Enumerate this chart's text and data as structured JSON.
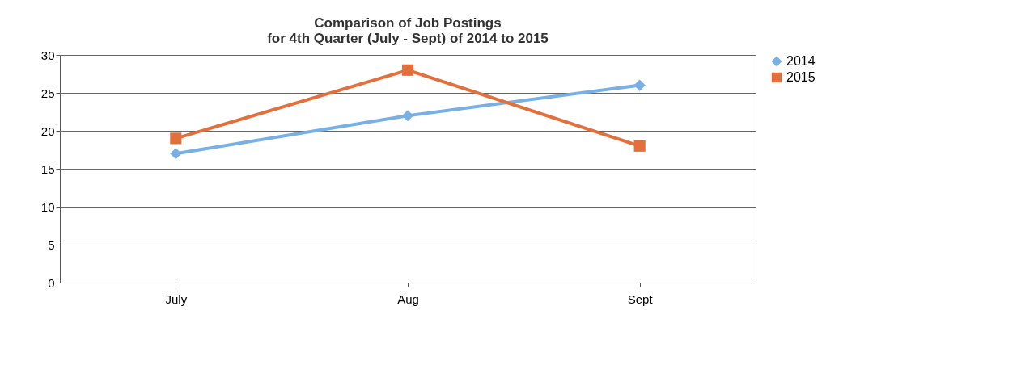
{
  "chart_data": {
    "type": "line",
    "title": "Comparison of Job Postings\nfor 4th Quarter (July - Sept) of 2014 to 2015",
    "categories": [
      "July",
      "Aug",
      "Sept"
    ],
    "series": [
      {
        "name": "2014",
        "color": "#78b0e6",
        "values": [
          17,
          22,
          26
        ],
        "marker": "diamond"
      },
      {
        "name": "2015",
        "color": "#e3703c",
        "values": [
          19,
          28,
          18
        ],
        "marker": "square"
      }
    ],
    "ylim": [
      0,
      30
    ],
    "yticks": [
      0,
      5,
      10,
      15,
      20,
      25,
      30
    ],
    "grid": "y",
    "legend": "right",
    "line_style": "solid"
  }
}
